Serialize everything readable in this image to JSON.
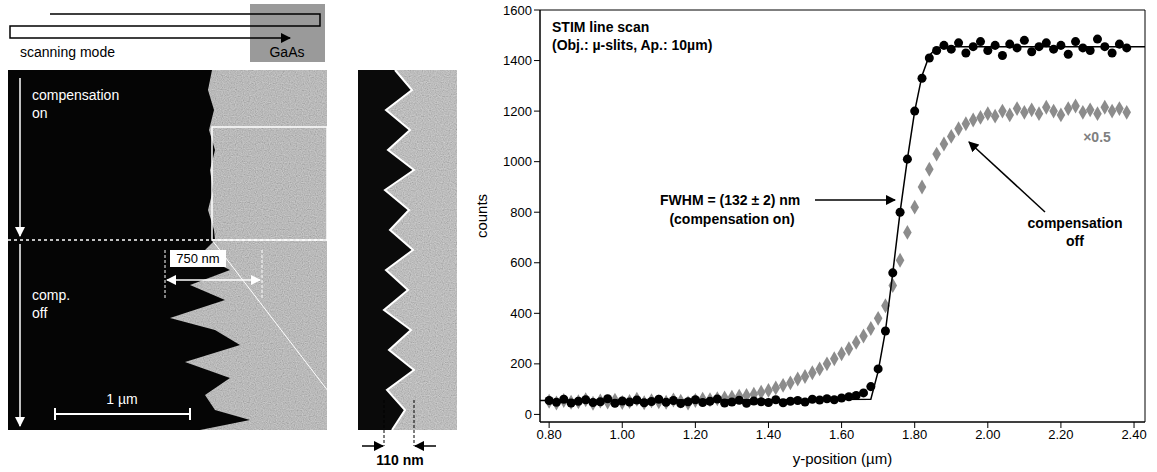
{
  "chart_data": {
    "type": "scatter",
    "title": "STIM line scan",
    "subtitle": "(Obj.: µ-slits, Ap.: 10µm)",
    "x_label": "y-position (µm)",
    "y_label": "counts",
    "xlim": [
      0.775,
      2.43
    ],
    "ylim": [
      -30,
      1600
    ],
    "xticks": [
      {
        "value": 0.8,
        "label": "0.80"
      },
      {
        "value": 1.0,
        "label": "1.00"
      },
      {
        "value": 1.2,
        "label": "1.20"
      },
      {
        "value": 1.4,
        "label": "1.40"
      },
      {
        "value": 1.6,
        "label": "1.60"
      },
      {
        "value": 1.8,
        "label": "1.80"
      },
      {
        "value": 2.0,
        "label": "2.00"
      },
      {
        "value": 2.2,
        "label": "2.20"
      },
      {
        "value": 2.4,
        "label": "2.40"
      }
    ],
    "yticks": [
      0,
      200,
      400,
      600,
      800,
      1000,
      1200,
      1400,
      1600
    ],
    "x": [
      0.8,
      0.82,
      0.84,
      0.86,
      0.88,
      0.9,
      0.92,
      0.94,
      0.96,
      0.98,
      1.0,
      1.02,
      1.04,
      1.06,
      1.08,
      1.1,
      1.12,
      1.14,
      1.16,
      1.18,
      1.2,
      1.22,
      1.24,
      1.26,
      1.28,
      1.3,
      1.32,
      1.34,
      1.36,
      1.38,
      1.4,
      1.42,
      1.44,
      1.46,
      1.48,
      1.5,
      1.52,
      1.54,
      1.56,
      1.58,
      1.6,
      1.62,
      1.64,
      1.66,
      1.68,
      1.7,
      1.72,
      1.74,
      1.76,
      1.78,
      1.8,
      1.82,
      1.84,
      1.86,
      1.88,
      1.9,
      1.92,
      1.94,
      1.96,
      1.98,
      2.0,
      2.02,
      2.04,
      2.06,
      2.08,
      2.1,
      2.12,
      2.14,
      2.16,
      2.18,
      2.2,
      2.22,
      2.24,
      2.26,
      2.28,
      2.3,
      2.32,
      2.34,
      2.36,
      2.38
    ],
    "series": [
      {
        "color": "#8c8c8c",
        "marker": "diamond",
        "values": [
          52,
          45,
          55,
          48,
          50,
          58,
          44,
          53,
          49,
          56,
          47,
          51,
          60,
          46,
          54,
          50,
          48,
          57,
          52,
          45,
          55,
          60,
          58,
          62,
          65,
          68,
          72,
          75,
          80,
          88,
          95,
          105,
          115,
          125,
          140,
          150,
          165,
          180,
          200,
          220,
          240,
          260,
          285,
          310,
          340,
          380,
          430,
          510,
          610,
          720,
          820,
          900,
          970,
          1030,
          1070,
          1100,
          1130,
          1150,
          1165,
          1175,
          1190,
          1180,
          1200,
          1185,
          1210,
          1195,
          1205,
          1190,
          1215,
          1200,
          1185,
          1210,
          1220,
          1195,
          1205,
          1190,
          1215,
          1200,
          1210,
          1195
        ]
      },
      {
        "color": "#000000",
        "marker": "circle",
        "values": [
          55,
          48,
          60,
          45,
          52,
          58,
          47,
          50,
          62,
          44,
          53,
          49,
          57,
          46,
          51,
          60,
          48,
          55,
          43,
          50,
          58,
          47,
          52,
          61,
          45,
          49,
          56,
          44,
          53,
          50,
          47,
          58,
          46,
          52,
          55,
          49,
          60,
          57,
          62,
          58,
          65,
          70,
          75,
          85,
          110,
          180,
          330,
          560,
          800,
          1010,
          1200,
          1330,
          1410,
          1440,
          1460,
          1445,
          1470,
          1430,
          1455,
          1475,
          1440,
          1460,
          1420,
          1465,
          1450,
          1480,
          1435,
          1455,
          1470,
          1445,
          1460,
          1425,
          1475,
          1450,
          1440,
          1485,
          1455,
          1430,
          1465,
          1450
        ]
      },
      {
        "type": "line",
        "color": "#000000",
        "x": [
          0.775,
          1.68,
          1.7,
          1.72,
          1.74,
          1.76,
          1.78,
          1.8,
          1.82,
          1.84,
          1.86,
          1.88,
          2.43
        ],
        "values": [
          55,
          60,
          170,
          330,
          560,
          800,
          1010,
          1200,
          1340,
          1420,
          1450,
          1455,
          1455
        ]
      }
    ],
    "annotations": [
      "FWHM = (132 ± 2) nm",
      "(compensation on)",
      "×0.5",
      "compensation off"
    ]
  },
  "micrograph": {
    "scan_label": "scanning mode",
    "sample_label": "GaAs",
    "upper_region": "compensation on",
    "lower_region": "comp. off",
    "roughness": "750 nm",
    "scale_bar": "1 µm",
    "inset_width": "110 nm"
  }
}
